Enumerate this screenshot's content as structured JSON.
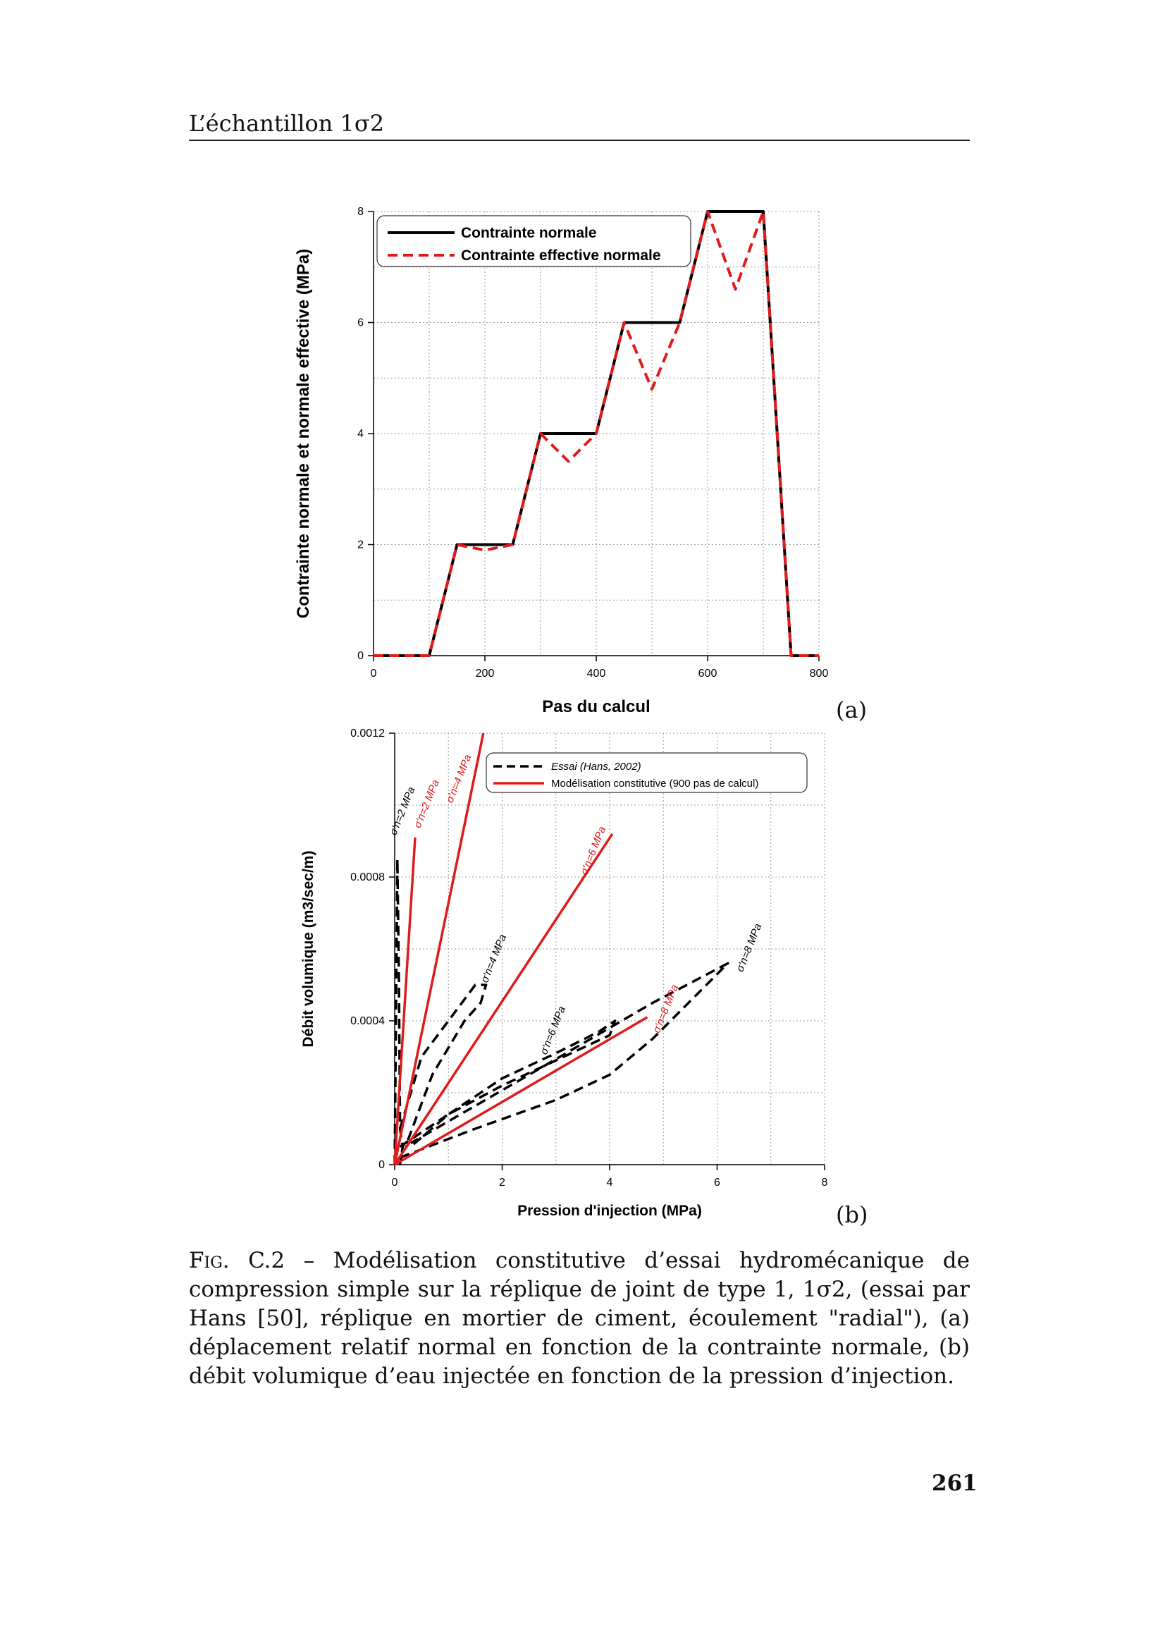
{
  "header": {
    "title": "L’échantillon 1σ2"
  },
  "chart_data": [
    {
      "type": "line",
      "xlabel": "Pas du calcul",
      "ylabel": "Contrainte normale et normale effective (MPa)",
      "xlim": [
        0,
        800
      ],
      "ylim": [
        0,
        8
      ],
      "xticks": [
        "0",
        "200",
        "400",
        "600",
        "800"
      ],
      "yticks": [
        "0",
        "2",
        "4",
        "6",
        "8"
      ],
      "grid": true,
      "legend_position": "top-left",
      "series": [
        {
          "name": "Contrainte normale",
          "color": "#000000",
          "style": "solid",
          "x": [
            0,
            100,
            150,
            250,
            300,
            400,
            450,
            550,
            600,
            700,
            750,
            800
          ],
          "y": [
            0,
            0,
            2,
            2,
            4,
            4,
            6,
            6,
            8,
            8,
            0,
            0
          ]
        },
        {
          "name": "Contrainte effective normale",
          "color": "#e01b1b",
          "style": "dashed",
          "x": [
            0,
            100,
            150,
            200,
            250,
            300,
            350,
            400,
            450,
            500,
            550,
            600,
            650,
            700,
            750,
            800
          ],
          "y": [
            0,
            0,
            2,
            1.9,
            2,
            4,
            3.5,
            4,
            6,
            4.8,
            6,
            8,
            6.6,
            8,
            0,
            0
          ]
        }
      ]
    },
    {
      "type": "line",
      "xlabel": "Pression d'injection (MPa)",
      "ylabel": "Débit volumique (m3/sec/m)",
      "xlim": [
        0,
        8
      ],
      "ylim": [
        0,
        0.0012
      ],
      "xticks": [
        "0",
        "2",
        "4",
        "6",
        "8"
      ],
      "yticks": [
        "0",
        "0.0004",
        "0.0008",
        "0.0012"
      ],
      "grid": true,
      "legend_position": "top-right",
      "series": [
        {
          "name": "Essai (Hans, 2002)",
          "color": "#000000",
          "style": "dashed",
          "segments": [
            {
              "x": [
                0,
                0.05,
                0.08,
                0.1,
                0.15,
                0.1
              ],
              "y": [
                0,
                0.00085,
                0.0005,
                0.0001,
                5e-05,
                0
              ]
            },
            {
              "x": [
                0.1,
                0.5,
                1.5,
                1.7,
                1.6,
                1.3,
                0.7,
                0.2
              ],
              "y": [
                0.0001,
                0.0003,
                0.0005,
                0.0005,
                0.00045,
                0.0004,
                0.00025,
                5e-05
              ]
            },
            {
              "x": [
                0.1,
                1,
                2,
                3,
                4,
                4.1,
                3.8,
                3,
                2,
                1,
                0.3
              ],
              "y": [
                5e-05,
                0.00014,
                0.00022,
                0.00029,
                0.00036,
                0.0004,
                0.00037,
                0.00031,
                0.00024,
                0.00014,
                5e-05
              ]
            },
            {
              "x": [
                0.1,
                1.5,
                3,
                4,
                4.8,
                6.2,
                4.8,
                2.5,
                0.3
              ],
              "y": [
                2e-05,
                0.0001,
                0.00018,
                0.00025,
                0.00035,
                0.00056,
                0.00045,
                0.00025,
                6e-05
              ]
            }
          ]
        },
        {
          "name": "Modélisation constitutive (900 pas de calcul)",
          "color": "#e01b1b",
          "style": "solid",
          "segments": [
            {
              "x": [
                0,
                0.38
              ],
              "y": [
                0,
                0.00091
              ]
            },
            {
              "x": [
                0,
                1.65
              ],
              "y": [
                0,
                0.0012
              ]
            },
            {
              "x": [
                0,
                4.05
              ],
              "y": [
                0,
                0.00092
              ]
            },
            {
              "x": [
                0,
                4.7
              ],
              "y": [
                0,
                0.00041
              ]
            }
          ]
        }
      ],
      "annotations": [
        {
          "text": "σ'n=2 MPa",
          "color": "#000000",
          "x": 0.2,
          "y": 0.00098
        },
        {
          "text": "σ'n=2 MPa",
          "color": "#e01b1b",
          "x": 0.65,
          "y": 0.001
        },
        {
          "text": "σ'n=4 MPa",
          "color": "#e01b1b",
          "x": 1.25,
          "y": 0.00107
        },
        {
          "text": "σ'n=6 MPa",
          "color": "#e01b1b",
          "x": 3.75,
          "y": 0.00087
        },
        {
          "text": "σ'n=4 MPa",
          "color": "#000000",
          "x": 1.9,
          "y": 0.00057
        },
        {
          "text": "σ'n=6 MPa",
          "color": "#000000",
          "x": 3.0,
          "y": 0.00037
        },
        {
          "text": "σ'n=8 MPa",
          "color": "#e01b1b",
          "x": 5.1,
          "y": 0.00043
        },
        {
          "text": "σ'n=8 MPa",
          "color": "#000000",
          "x": 6.65,
          "y": 0.0006
        }
      ]
    }
  ],
  "subfigure_labels": {
    "a": "(a)",
    "b": "(b)"
  },
  "caption": {
    "fig_label": "Fig. C.2 –",
    "text": " Modélisation constitutive d’essai hydromécanique de compression simple sur la réplique de joint de type 1, 1σ2, (essai par Hans [50], réplique en mortier de ciment, écoulement \"radial\"), (a) déplacement relatif normal en fonction de la contrainte normale, (b) débit volumique d’eau injectée en fonction de la pression d’injection."
  },
  "page_number": "261"
}
